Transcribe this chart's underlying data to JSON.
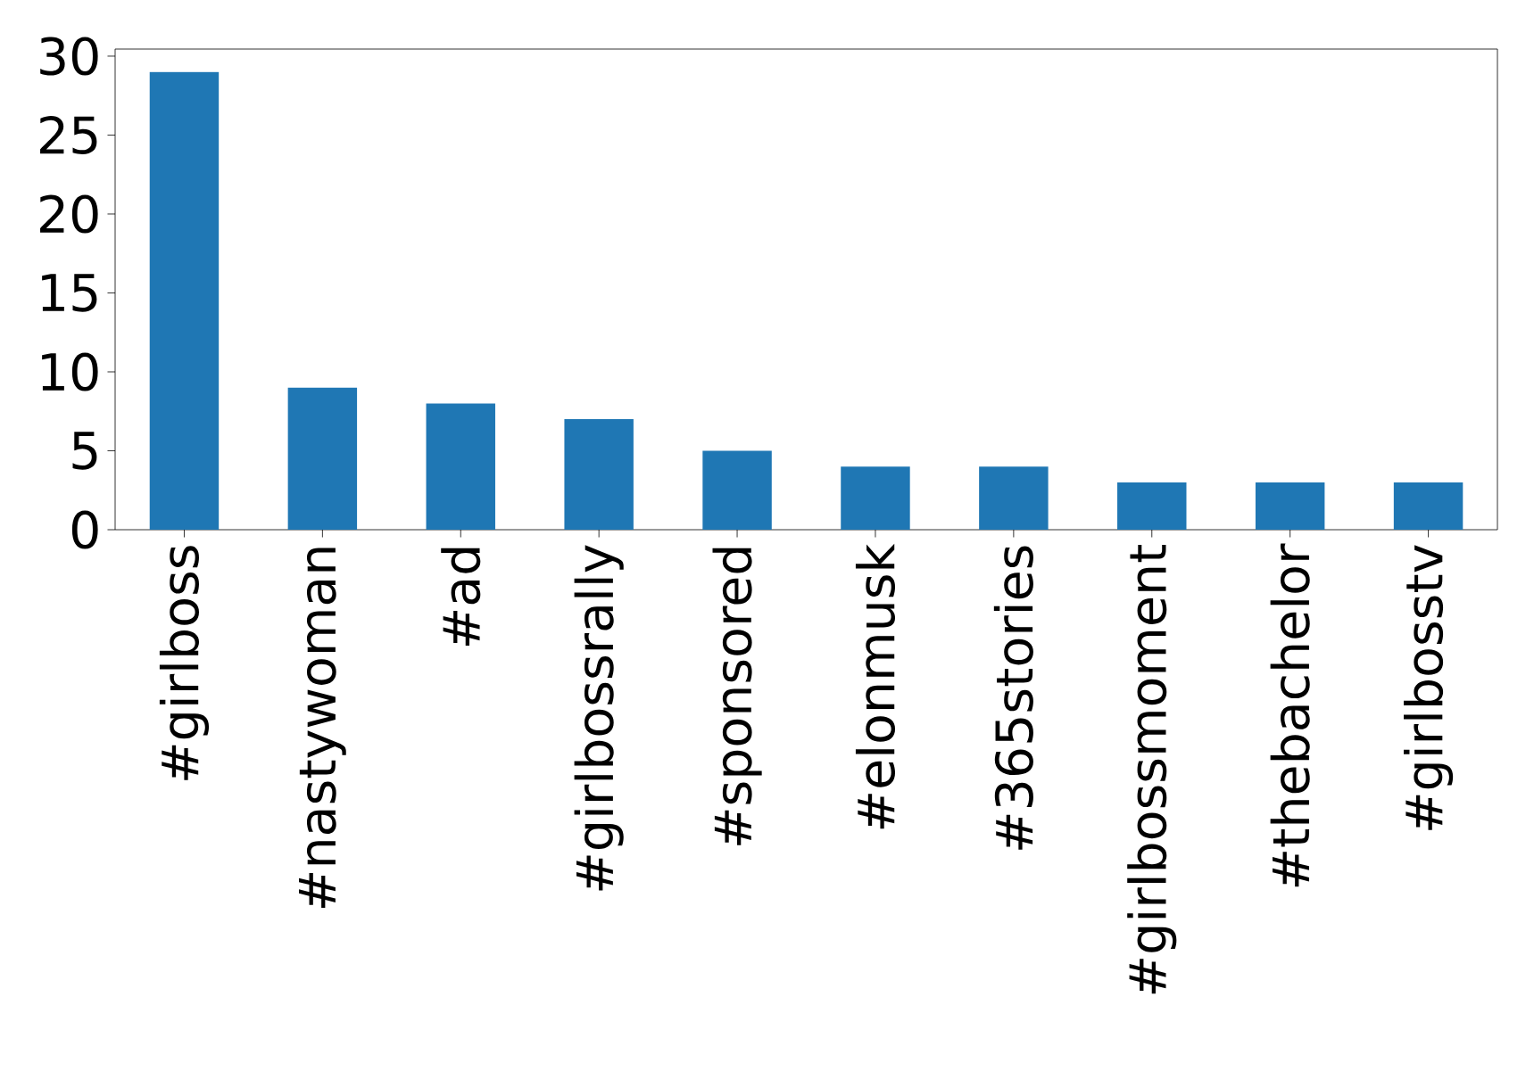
{
  "chart_data": {
    "type": "bar",
    "categories": [
      "#girlboss",
      "#nastywoman",
      "#ad",
      "#girlbossrally",
      "#sponsored",
      "#elonmusk",
      "#365stories",
      "#girlbossmoment",
      "#thebachelor",
      "#girlbosstv"
    ],
    "values": [
      29,
      9,
      8,
      7,
      5,
      4,
      4,
      3,
      3,
      3
    ],
    "color": "#1f77b4",
    "ylim": [
      0,
      30.45
    ],
    "yticks": [
      0,
      5,
      10,
      15,
      20,
      25,
      30
    ]
  }
}
